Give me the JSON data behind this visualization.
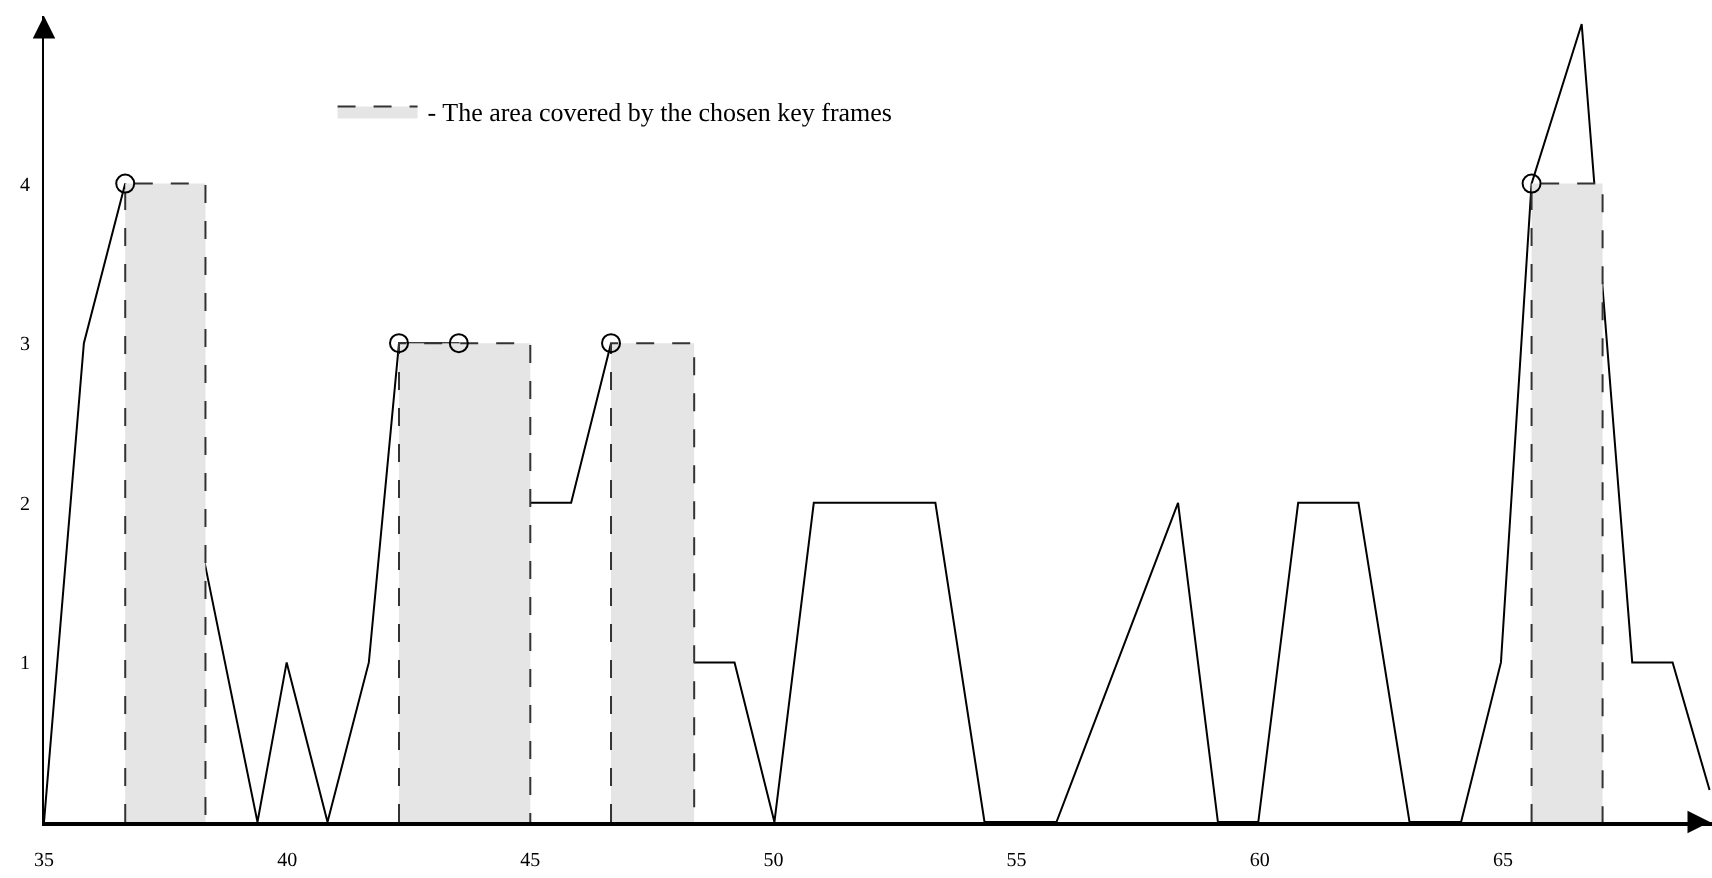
{
  "chart_data": {
    "type": "line",
    "xlim": [
      35,
      69.3
    ],
    "ylim": [
      0,
      5.05
    ],
    "xticks": [
      35,
      40,
      45,
      50,
      55,
      60,
      65
    ],
    "yticks": [
      1,
      2,
      3,
      4
    ],
    "legend": "top",
    "series": [
      {
        "color": "#000000",
        "line_style": "solid",
        "marker": "none",
        "x": [
          35,
          35.82,
          36.67,
          38.32,
          39.39,
          39.99,
          40.83,
          41.68,
          42.3,
          43.53,
          45.0,
          45.84,
          46.66,
          48.37,
          49.2,
          50.02,
          50.83,
          53.33,
          54.34,
          55.82,
          58.32,
          59.14,
          59.97,
          60.79,
          62.03,
          63.08,
          64.14,
          64.96,
          65.59,
          66.62,
          67.66,
          68.49,
          69.25
        ],
        "values": [
          0,
          3,
          4,
          1.6,
          0,
          1,
          0,
          1,
          3,
          3,
          2,
          2,
          3,
          1,
          1,
          0,
          2,
          2,
          0,
          0,
          2,
          0,
          0,
          2,
          2,
          0,
          0,
          1,
          4,
          5,
          1,
          1,
          0.2
        ]
      },
      {
        "type": "area",
        "name": "- The area covered by the chosen key frames",
        "color": "#e5e5e5",
        "line_style": "dashed",
        "x": [
          36.67,
          36.67,
          38.32,
          38.32
        ],
        "values": [
          0,
          4,
          4,
          0
        ]
      },
      {
        "type": "area",
        "color": "#e5e5e5",
        "line_style": "dashed",
        "x": [
          42.3,
          42.3,
          45.0,
          45.0
        ],
        "values": [
          0,
          3,
          3,
          0
        ]
      },
      {
        "type": "area",
        "color": "#e5e5e5",
        "line_style": "dashed",
        "x": [
          46.66,
          46.66,
          48.37,
          48.37
        ],
        "values": [
          0,
          3,
          3,
          0
        ]
      },
      {
        "type": "area",
        "color": "#e5e5e5",
        "line_style": "dashed",
        "x": [
          65.59,
          65.59,
          67.05,
          67.05
        ],
        "values": [
          0,
          4,
          4,
          0
        ]
      },
      {
        "type": "scatter",
        "color": "#000000",
        "marker": "circle",
        "x": [
          36.67,
          42.3,
          43.53,
          46.66,
          65.59
        ],
        "values": [
          4,
          3,
          3,
          3,
          4
        ]
      }
    ]
  }
}
